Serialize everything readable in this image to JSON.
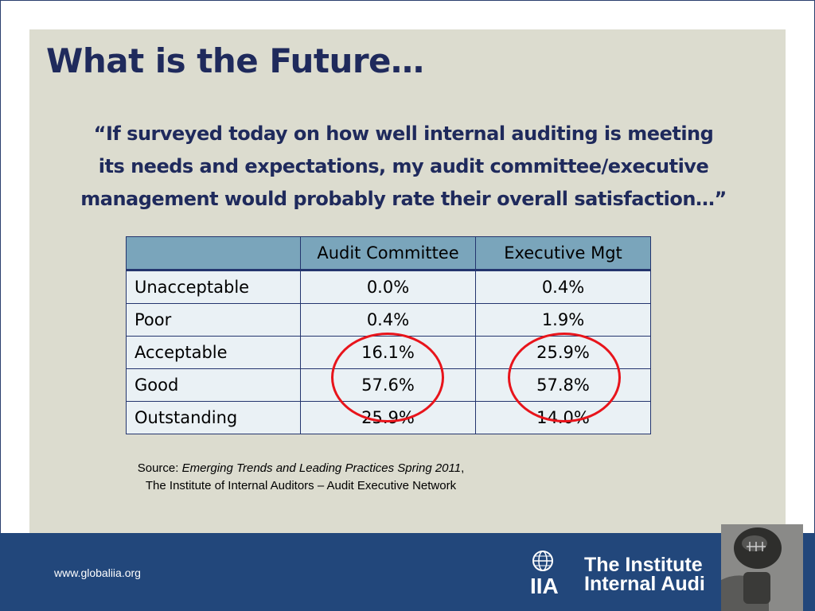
{
  "slide": {
    "title": "What is the Future…",
    "quote_lines": [
      "“If surveyed today on how well internal auditing is meeting",
      "its needs and expectations, my audit committee/executive",
      "management would probably rate their overall satisfaction…”"
    ]
  },
  "table": {
    "headers": [
      "",
      "Audit Committee",
      "Executive Mgt"
    ],
    "rows": [
      [
        "Unacceptable",
        "0.0%",
        "0.4%"
      ],
      [
        "Poor",
        "0.4%",
        "1.9%"
      ],
      [
        "Acceptable",
        "16.1%",
        "25.9%"
      ],
      [
        "Good",
        "57.6%",
        "57.8%"
      ],
      [
        "Outstanding",
        "25.9%",
        "14.0%"
      ]
    ]
  },
  "source": {
    "prefix": "Source: ",
    "title": "Emerging Trends and Leading Practices Spring 2011",
    "comma": ",",
    "line2": "The Institute of Internal Auditors – Audit Executive Network"
  },
  "footer": {
    "url": "www.globaliia.org",
    "logo_line1": "The Institute",
    "logo_line2": "Internal Audi",
    "logo_mark": "IIA"
  },
  "colors": {
    "title": "#1f2a5c",
    "panel": "#dcdccf",
    "footer": "#22477b",
    "header_fill": "#7aa5bb",
    "cell_fill": "#eaf1f5",
    "highlight_circle": "#e8141b"
  },
  "icons": {
    "logo": "iia-globe-logo-icon",
    "photo": "gear-shifter-photo"
  }
}
